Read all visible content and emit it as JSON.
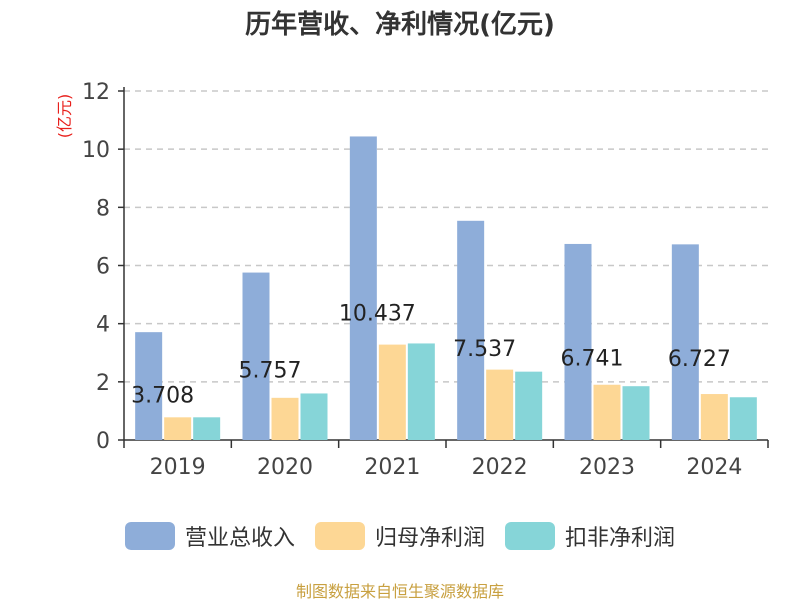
{
  "chart_data": {
    "type": "bar",
    "title": "历年营收、净利情况(亿元)",
    "ylabel": "(亿元)",
    "xlabel": "",
    "categories": [
      "2019",
      "2020",
      "2021",
      "2022",
      "2023",
      "2024"
    ],
    "ylim": [
      0,
      12
    ],
    "yticks": [
      0,
      2,
      4,
      6,
      8,
      10,
      12
    ],
    "grid": true,
    "legend_position": "bottom",
    "series": [
      {
        "name": "营业总收入",
        "color": "#8eadd9",
        "values": [
          3.708,
          5.757,
          10.437,
          7.537,
          6.741,
          6.727
        ],
        "data_labels": [
          "3.708",
          "5.757",
          "10.437",
          "7.537",
          "6.741",
          "6.727"
        ]
      },
      {
        "name": "归母净利润",
        "color": "#fdd795",
        "values": [
          0.78,
          1.45,
          3.28,
          2.42,
          1.9,
          1.58
        ]
      },
      {
        "name": "扣非净利润",
        "color": "#86d5d8",
        "values": [
          0.78,
          1.6,
          3.32,
          2.35,
          1.85,
          1.47
        ]
      }
    ]
  },
  "source_note": "制图数据来自恒生聚源数据库"
}
